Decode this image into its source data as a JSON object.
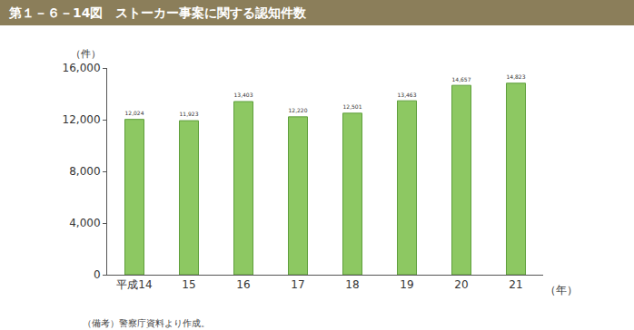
{
  "chart_data": {
    "type": "bar",
    "title": "第１－６－14図　ストーカー事案に関する認知件数",
    "ylabel": "（件）",
    "xlabel": "（年）",
    "note": "（備考）警察庁資料より作成。",
    "categories": [
      "平成14",
      "15",
      "16",
      "17",
      "18",
      "19",
      "20",
      "21"
    ],
    "values": [
      12024,
      11923,
      13403,
      12220,
      12501,
      13463,
      14657,
      14823
    ],
    "value_labels": [
      "12,024",
      "11,923",
      "13,403",
      "12,220",
      "12,501",
      "13,463",
      "14,657",
      "14,823"
    ],
    "data_labels": true,
    "color": "#8dc862",
    "ylim": [
      0,
      16000
    ],
    "yticks": [
      0,
      {
        "value": 4000,
        "label": "4,000"
      },
      {
        "value": 8000,
        "label": "8,000"
      },
      {
        "value": 12000,
        "label": "12,000"
      },
      {
        "value": 16000,
        "label": "16,000"
      }
    ],
    "grid": false
  }
}
